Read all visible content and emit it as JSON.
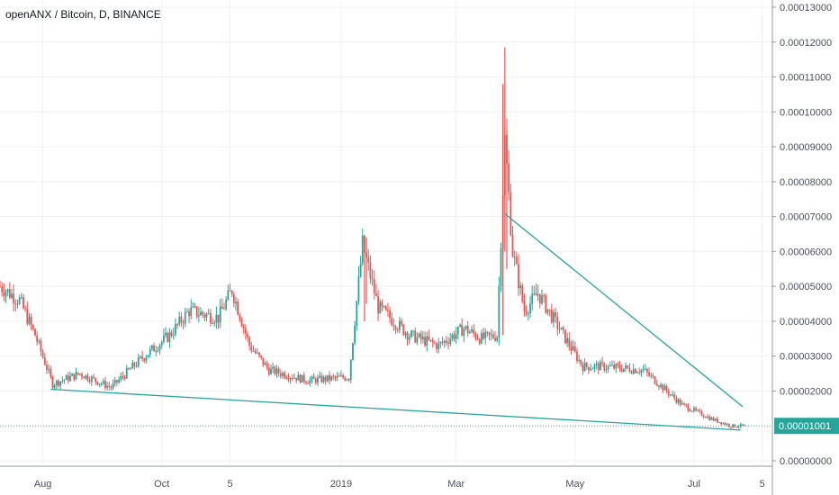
{
  "chart_data": {
    "type": "candlestick",
    "title": "openANX / Bitcoin, D, BINANCE",
    "y_axis": {
      "ticks": [
        "0.00013000",
        "0.00012000",
        "0.00011000",
        "0.00010000",
        "0.00009000",
        "0.00008000",
        "0.00007000",
        "0.00006000",
        "0.00005000",
        "0.00004000",
        "0.00003000",
        "0.00002000",
        "0.00000000"
      ],
      "tick_values": [
        0.00013,
        0.00012,
        0.00011,
        0.0001,
        9e-05,
        8e-05,
        7e-05,
        6e-05,
        5e-05,
        4e-05,
        3e-05,
        2e-05,
        0.0
      ],
      "range": [
        0.0,
        0.00013
      ],
      "position": "right"
    },
    "x_axis": {
      "ticks": [
        "Aug",
        "Oct",
        "5",
        "2019",
        "Mar",
        "May",
        "Jul",
        "5"
      ],
      "tick_dates": [
        "2018-08-01",
        "2018-10-01",
        "2018-11-05",
        "2019-01-01",
        "2019-03-01",
        "2019-05-01",
        "2019-07-01",
        "2019-08-05"
      ],
      "range": [
        "2018-07-10",
        "2019-08-01"
      ]
    },
    "last_price": {
      "label": "0.00001001",
      "value": 1.001e-05
    },
    "colors": {
      "up": "#26a69a",
      "down": "#ef5350",
      "trendline": "#26a69a",
      "price_tag": "#26a69a",
      "grid": "#eef0f3"
    },
    "grid": true,
    "trendlines": [
      {
        "name": "",
        "x": [
          "2018-08-05",
          "2019-07-25"
        ],
        "y": [
          2.05e-05,
          8.8e-06
        ]
      },
      {
        "name": "",
        "x": [
          "2019-03-26",
          "2019-07-26"
        ],
        "y": [
          7.08e-05,
          1.55e-05
        ]
      }
    ],
    "close_anchors": [
      {
        "x": "2018-07-10",
        "y": 5e-05
      },
      {
        "x": "2018-07-20",
        "y": 4.6e-05
      },
      {
        "x": "2018-07-28",
        "y": 3.6e-05
      },
      {
        "x": "2018-08-06",
        "y": 2.2e-05
      },
      {
        "x": "2018-08-20",
        "y": 2.5e-05
      },
      {
        "x": "2018-09-05",
        "y": 2.1e-05
      },
      {
        "x": "2018-09-20",
        "y": 2.9e-05
      },
      {
        "x": "2018-10-05",
        "y": 3.6e-05
      },
      {
        "x": "2018-10-15",
        "y": 4.3e-05
      },
      {
        "x": "2018-10-30",
        "y": 4.1e-05
      },
      {
        "x": "2018-11-06",
        "y": 4.9e-05
      },
      {
        "x": "2018-11-15",
        "y": 3.3e-05
      },
      {
        "x": "2018-11-25",
        "y": 2.6e-05
      },
      {
        "x": "2018-12-15",
        "y": 2.3e-05
      },
      {
        "x": "2019-01-05",
        "y": 2.4e-05
      },
      {
        "x": "2019-01-12",
        "y": 6.2e-05
      },
      {
        "x": "2019-01-20",
        "y": 4.4e-05
      },
      {
        "x": "2019-02-05",
        "y": 3.6e-05
      },
      {
        "x": "2019-02-20",
        "y": 3.3e-05
      },
      {
        "x": "2019-03-05",
        "y": 3.8e-05
      },
      {
        "x": "2019-03-14",
        "y": 3.5e-05
      },
      {
        "x": "2019-03-22",
        "y": 3.6e-05
      },
      {
        "x": "2019-03-26",
        "y": 9.2e-05
      },
      {
        "x": "2019-03-30",
        "y": 6e-05
      },
      {
        "x": "2019-04-05",
        "y": 4.3e-05
      },
      {
        "x": "2019-04-12",
        "y": 4.8e-05
      },
      {
        "x": "2019-04-25",
        "y": 3.6e-05
      },
      {
        "x": "2019-05-05",
        "y": 2.7e-05
      },
      {
        "x": "2019-05-15",
        "y": 2.7e-05
      },
      {
        "x": "2019-06-05",
        "y": 2.6e-05
      },
      {
        "x": "2019-06-15",
        "y": 2.1e-05
      },
      {
        "x": "2019-06-25",
        "y": 1.6e-05
      },
      {
        "x": "2019-07-10",
        "y": 1.2e-05
      },
      {
        "x": "2019-07-20",
        "y": 1e-05
      },
      {
        "x": "2019-07-27",
        "y": 1.001e-05
      }
    ]
  }
}
